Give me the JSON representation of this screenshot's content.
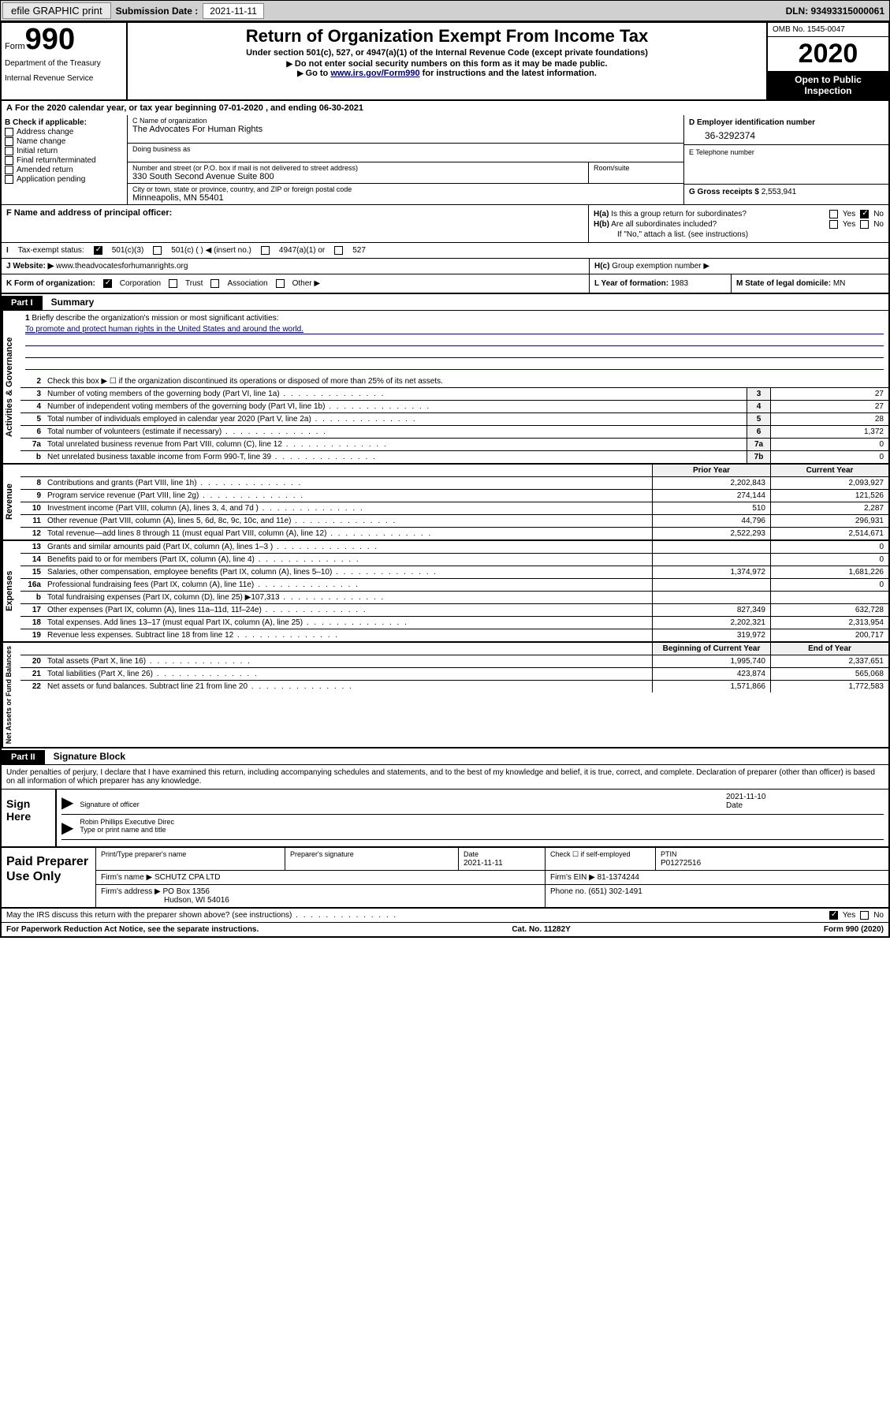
{
  "toolbar": {
    "efile_label": "efile GRAPHIC print",
    "submission_label": "Submission Date :",
    "submission_date": "2021-11-11",
    "dln_label": "DLN: 93493315000061"
  },
  "header": {
    "form_prefix": "Form",
    "form_number": "990",
    "dept1": "Department of the Treasury",
    "dept2": "Internal Revenue Service",
    "title": "Return of Organization Exempt From Income Tax",
    "subtitle": "Under section 501(c), 527, or 4947(a)(1) of the Internal Revenue Code (except private foundations)",
    "note1": "Do not enter social security numbers on this form as it may be made public.",
    "note2_prefix": "Go to ",
    "note2_link": "www.irs.gov/Form990",
    "note2_suffix": " for instructions and the latest information.",
    "omb": "OMB No. 1545-0047",
    "year": "2020",
    "inspection1": "Open to Public",
    "inspection2": "Inspection"
  },
  "row_a": {
    "text": "For the 2020 calendar year, or tax year beginning 07-01-2020   , and ending 06-30-2021",
    "a_label": "A"
  },
  "section_b": {
    "b_label": "B Check if applicable:",
    "opts": [
      "Address change",
      "Name change",
      "Initial return",
      "Final return/terminated",
      "Amended return",
      "Application pending"
    ],
    "c_label": "C Name of organization",
    "org_name": "The Advocates For Human Rights",
    "dba_label": "Doing business as",
    "addr_label": "Number and street (or P.O. box if mail is not delivered to street address)",
    "addr": "330 South Second Avenue Suite 800",
    "room_label": "Room/suite",
    "city_label": "City or town, state or province, country, and ZIP or foreign postal code",
    "city": "Minneapolis, MN  55401",
    "d_label": "D Employer identification number",
    "ein": "36-3292374",
    "e_label": "E Telephone number",
    "g_label": "G Gross receipts $",
    "gross": "2,553,941"
  },
  "section_f": {
    "f_label": "F Name and address of principal officer:",
    "ha_label": "H(a)",
    "ha_text": "Is this a group return for subordinates?",
    "hb_label": "H(b)",
    "hb_text": "Are all subordinates included?",
    "hb_note": "If \"No,\" attach a list. (see instructions)",
    "yes": "Yes",
    "no": "No"
  },
  "tax_status": {
    "i_label": "I",
    "label": "Tax-exempt status:",
    "opt1": "501(c)(3)",
    "opt2": "501(c) (  ) ◀ (insert no.)",
    "opt3": "4947(a)(1) or",
    "opt4": "527"
  },
  "website": {
    "j_label": "J",
    "label": "Website: ▶",
    "url": "www.theadvocatesforhumanrights.org",
    "hc_label": "H(c)",
    "hc_text": "Group exemption number ▶"
  },
  "org_row": {
    "k_label": "K Form of organization:",
    "opts": [
      "Corporation",
      "Trust",
      "Association",
      "Other ▶"
    ],
    "l_label": "L Year of formation:",
    "l_val": "1983",
    "m_label": "M State of legal domicile:",
    "m_val": "MN"
  },
  "part1": {
    "header": "Part I",
    "title": "Summary"
  },
  "governance": {
    "side": "Activities & Governance",
    "line1": "Briefly describe the organization's mission or most significant activities:",
    "mission": "To promote and protect human rights in the United States and around the world.",
    "line2": "Check this box ▶ ☐  if the organization discontinued its operations or disposed of more than 25% of its net assets.",
    "rows": [
      {
        "n": "3",
        "d": "Number of voting members of the governing body (Part VI, line 1a)",
        "b": "3",
        "v": "27"
      },
      {
        "n": "4",
        "d": "Number of independent voting members of the governing body (Part VI, line 1b)",
        "b": "4",
        "v": "27"
      },
      {
        "n": "5",
        "d": "Total number of individuals employed in calendar year 2020 (Part V, line 2a)",
        "b": "5",
        "v": "28"
      },
      {
        "n": "6",
        "d": "Total number of volunteers (estimate if necessary)",
        "b": "6",
        "v": "1,372"
      },
      {
        "n": "7a",
        "d": "Total unrelated business revenue from Part VIII, column (C), line 12",
        "b": "7a",
        "v": "0"
      },
      {
        "n": "b",
        "d": "Net unrelated business taxable income from Form 990-T, line 39",
        "b": "7b",
        "v": "0"
      }
    ]
  },
  "revenue": {
    "side": "Revenue",
    "prior_label": "Prior Year",
    "current_label": "Current Year",
    "rows": [
      {
        "n": "8",
        "d": "Contributions and grants (Part VIII, line 1h)",
        "p": "2,202,843",
        "c": "2,093,927"
      },
      {
        "n": "9",
        "d": "Program service revenue (Part VIII, line 2g)",
        "p": "274,144",
        "c": "121,526"
      },
      {
        "n": "10",
        "d": "Investment income (Part VIII, column (A), lines 3, 4, and 7d )",
        "p": "510",
        "c": "2,287"
      },
      {
        "n": "11",
        "d": "Other revenue (Part VIII, column (A), lines 5, 6d, 8c, 9c, 10c, and 11e)",
        "p": "44,796",
        "c": "296,931"
      },
      {
        "n": "12",
        "d": "Total revenue—add lines 8 through 11 (must equal Part VIII, column (A), line 12)",
        "p": "2,522,293",
        "c": "2,514,671"
      }
    ]
  },
  "expenses": {
    "side": "Expenses",
    "rows": [
      {
        "n": "13",
        "d": "Grants and similar amounts paid (Part IX, column (A), lines 1–3 )",
        "p": "",
        "c": "0"
      },
      {
        "n": "14",
        "d": "Benefits paid to or for members (Part IX, column (A), line 4)",
        "p": "",
        "c": "0"
      },
      {
        "n": "15",
        "d": "Salaries, other compensation, employee benefits (Part IX, column (A), lines 5–10)",
        "p": "1,374,972",
        "c": "1,681,226"
      },
      {
        "n": "16a",
        "d": "Professional fundraising fees (Part IX, column (A), line 11e)",
        "p": "",
        "c": "0"
      },
      {
        "n": "b",
        "d": "Total fundraising expenses (Part IX, column (D), line 25) ▶107,313",
        "p": "",
        "c": ""
      },
      {
        "n": "17",
        "d": "Other expenses (Part IX, column (A), lines 11a–11d, 11f–24e)",
        "p": "827,349",
        "c": "632,728"
      },
      {
        "n": "18",
        "d": "Total expenses. Add lines 13–17 (must equal Part IX, column (A), line 25)",
        "p": "2,202,321",
        "c": "2,313,954"
      },
      {
        "n": "19",
        "d": "Revenue less expenses. Subtract line 18 from line 12",
        "p": "319,972",
        "c": "200,717"
      }
    ]
  },
  "balances": {
    "side": "Net Assets or Fund Balances",
    "begin_label": "Beginning of Current Year",
    "end_label": "End of Year",
    "rows": [
      {
        "n": "20",
        "d": "Total assets (Part X, line 16)",
        "p": "1,995,740",
        "c": "2,337,651"
      },
      {
        "n": "21",
        "d": "Total liabilities (Part X, line 26)",
        "p": "423,874",
        "c": "565,068"
      },
      {
        "n": "22",
        "d": "Net assets or fund balances. Subtract line 21 from line 20",
        "p": "1,571,866",
        "c": "1,772,583"
      }
    ]
  },
  "part2": {
    "header": "Part II",
    "title": "Signature Block",
    "perjury": "Under penalties of perjury, I declare that I have examined this return, including accompanying schedules and statements, and to the best of my knowledge and belief, it is true, correct, and complete. Declaration of preparer (other than officer) is based on all information of which preparer has any knowledge."
  },
  "sign": {
    "label": "Sign Here",
    "sig_label": "Signature of officer",
    "date_label": "Date",
    "date": "2021-11-10",
    "name": "Robin Phillips  Executive Direc",
    "name_label": "Type or print name and title"
  },
  "preparer": {
    "label": "Paid Preparer Use Only",
    "print_label": "Print/Type preparer's name",
    "sig_label": "Preparer's signature",
    "date_label": "Date",
    "date": "2021-11-11",
    "check_label": "Check ☐ if self-employed",
    "ptin_label": "PTIN",
    "ptin": "P01272516",
    "firm_name_label": "Firm's name    ▶",
    "firm_name": "SCHUTZ CPA LTD",
    "firm_ein_label": "Firm's EIN ▶",
    "firm_ein": "81-1374244",
    "firm_addr_label": "Firm's address ▶",
    "firm_addr1": "PO Box 1356",
    "firm_addr2": "Hudson, WI  54016",
    "phone_label": "Phone no.",
    "phone": "(651) 302-1491"
  },
  "footer": {
    "discuss": "May the IRS discuss this return with the preparer shown above? (see instructions)",
    "paperwork": "For Paperwork Reduction Act Notice, see the separate instructions.",
    "cat": "Cat. No. 11282Y",
    "form": "Form 990 (2020)",
    "yes": "Yes",
    "no": "No"
  }
}
